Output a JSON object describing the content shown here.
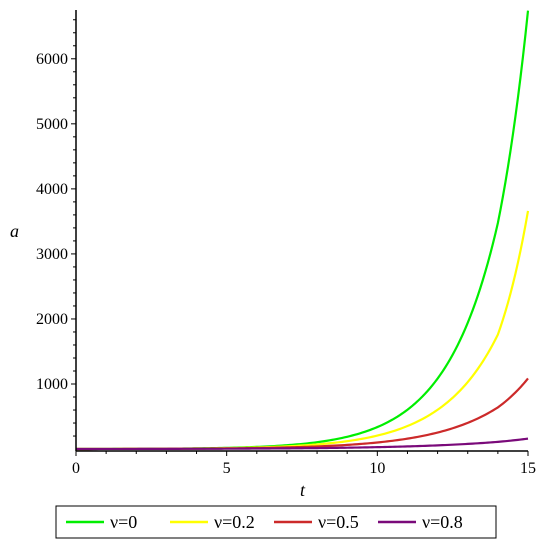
{
  "chart_data": {
    "type": "line",
    "xlabel": "t",
    "ylabel": "a",
    "xlim": [
      0,
      15
    ],
    "ylim": [
      -30,
      6750
    ],
    "x_ticks": [
      0,
      5,
      10,
      15
    ],
    "y_ticks": [
      1000,
      2000,
      3000,
      4000,
      5000,
      6000
    ],
    "grid": false,
    "legend_position": "bottom",
    "series": [
      {
        "name": "ν=0",
        "color": "#00ee00",
        "x": [
          0,
          1,
          2,
          3,
          4,
          5,
          6,
          7,
          8,
          9,
          10,
          11,
          12,
          13,
          14,
          15
        ],
        "values": [
          1,
          1.8,
          3.2,
          5.7,
          10.3,
          18.4,
          33,
          59,
          105,
          189,
          338,
          605,
          1084,
          1941,
          3475,
          6740
        ]
      },
      {
        "name": "ν=0.2",
        "color": "#ffff00",
        "x": [
          0,
          1,
          2,
          3,
          4,
          5,
          6,
          7,
          8,
          9,
          10,
          11,
          12,
          13,
          14,
          15
        ],
        "values": [
          1,
          1.7,
          2.9,
          4.9,
          8.4,
          14.3,
          24.4,
          41.7,
          71,
          121,
          207,
          354,
          604,
          1030,
          1760,
          3660
        ]
      },
      {
        "name": "ν=0.5",
        "color": "#cc2a2a",
        "x": [
          0,
          1,
          2,
          3,
          4,
          5,
          6,
          7,
          8,
          9,
          10,
          11,
          12,
          13,
          14,
          15
        ],
        "values": [
          1,
          1.6,
          2.5,
          4,
          6.3,
          10,
          16,
          25.4,
          40,
          63.6,
          101,
          160,
          254,
          403,
          640,
          1085
        ]
      },
      {
        "name": "ν=0.8",
        "color": "#7a0a7a",
        "x": [
          0,
          1,
          2,
          3,
          4,
          5,
          6,
          7,
          8,
          9,
          10,
          11,
          12,
          13,
          14,
          15
        ],
        "values": [
          1,
          1.4,
          2,
          2.8,
          3.9,
          5.4,
          7.6,
          10.6,
          14.8,
          20.7,
          29,
          40.5,
          56.6,
          79.1,
          110.5,
          160
        ]
      }
    ]
  }
}
